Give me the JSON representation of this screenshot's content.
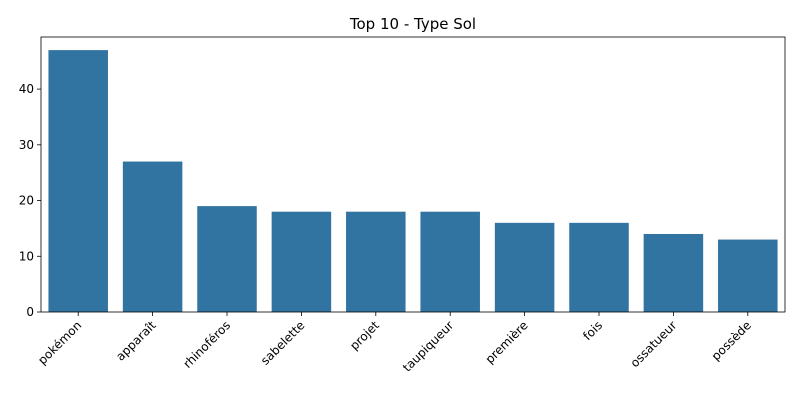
{
  "chart_data": {
    "type": "bar",
    "title": "Top 10 - Type Sol",
    "xlabel": "",
    "ylabel": "",
    "categories": [
      "pokémon",
      "apparaît",
      "rhinoféros",
      "sabelette",
      "projet",
      "taupiqueur",
      "première",
      "fois",
      "ossatueur",
      "possède"
    ],
    "values": [
      47,
      27,
      19,
      18,
      18,
      18,
      16,
      16,
      14,
      13
    ],
    "yticks": [
      0,
      10,
      20,
      30,
      40
    ],
    "ylim": [
      0,
      49.35
    ],
    "bar_color": "#3274a1",
    "grid": false,
    "legend": "none"
  }
}
